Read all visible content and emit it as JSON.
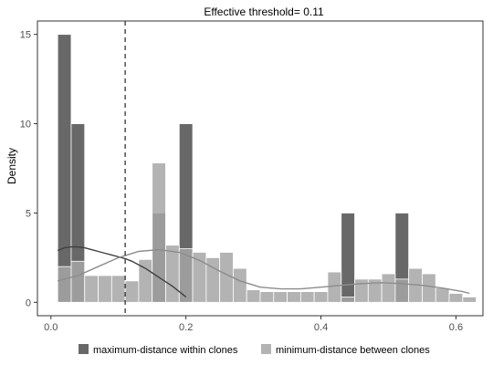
{
  "chart_data": {
    "type": "bar",
    "title": "Effective threshold= 0.11",
    "xlabel": "",
    "ylabel": "Density",
    "xlim": [
      -0.02,
      0.64
    ],
    "ylim": [
      -0.75,
      15.75
    ],
    "x_ticks": [
      0.0,
      0.2,
      0.4,
      0.6
    ],
    "x_tick_labels": [
      "0.0",
      "0.2",
      "0.4",
      "0.6"
    ],
    "y_ticks": [
      0,
      5,
      10,
      15
    ],
    "y_tick_labels": [
      "0",
      "5",
      "10",
      "15"
    ],
    "bin_width": 0.02,
    "bin_starts": [
      0.01,
      0.03,
      0.05,
      0.07,
      0.09,
      0.11,
      0.13,
      0.15,
      0.17,
      0.19,
      0.21,
      0.23,
      0.25,
      0.27,
      0.29,
      0.31,
      0.33,
      0.35,
      0.37,
      0.39,
      0.41,
      0.43,
      0.45,
      0.47,
      0.49,
      0.51,
      0.53,
      0.55,
      0.57,
      0.59,
      0.61
    ],
    "threshold": 0.11,
    "grid": false,
    "legend_position": "bottom",
    "series": [
      {
        "name": "maximum-distance within clones",
        "color": "#4d4d4d",
        "values": [
          15,
          10,
          0,
          0,
          0,
          0,
          0,
          5,
          0,
          10,
          0,
          0,
          0,
          0,
          0,
          0,
          0,
          0,
          0,
          0,
          0,
          5,
          0,
          0,
          0,
          5,
          0,
          0,
          0,
          0,
          0
        ],
        "density_x": [
          0.01,
          0.02,
          0.03,
          0.04,
          0.05,
          0.06,
          0.07,
          0.08,
          0.09,
          0.1,
          0.11,
          0.12,
          0.13,
          0.14,
          0.15,
          0.16,
          0.17,
          0.18,
          0.19,
          0.2
        ],
        "density_y": [
          2.9,
          3.05,
          3.1,
          3.1,
          3.05,
          2.95,
          2.85,
          2.75,
          2.65,
          2.55,
          2.45,
          2.3,
          2.1,
          1.9,
          1.65,
          1.4,
          1.15,
          0.9,
          0.6,
          0.3
        ]
      },
      {
        "name": "minimum-distance between clones",
        "color": "#a6a6a6",
        "values": [
          2,
          2.3,
          1.5,
          1.5,
          1.5,
          1.2,
          2.4,
          7.8,
          3.2,
          3,
          2.8,
          2.5,
          2.8,
          1.9,
          0.7,
          0.6,
          0.6,
          0.6,
          0.6,
          0.6,
          1.7,
          0.3,
          1.3,
          1.3,
          1.6,
          1.3,
          1.9,
          1.6,
          0.8,
          0.5,
          0.3
        ],
        "density_x": [
          0.01,
          0.04,
          0.07,
          0.1,
          0.13,
          0.16,
          0.19,
          0.22,
          0.25,
          0.28,
          0.31,
          0.34,
          0.37,
          0.4,
          0.43,
          0.46,
          0.49,
          0.52,
          0.55,
          0.58,
          0.61,
          0.62
        ],
        "density_y": [
          1.2,
          1.5,
          2.0,
          2.5,
          2.85,
          2.95,
          2.8,
          2.35,
          1.75,
          1.2,
          0.85,
          0.75,
          0.75,
          0.85,
          0.95,
          1.05,
          1.1,
          1.05,
          0.95,
          0.8,
          0.6,
          0.5
        ]
      }
    ]
  }
}
